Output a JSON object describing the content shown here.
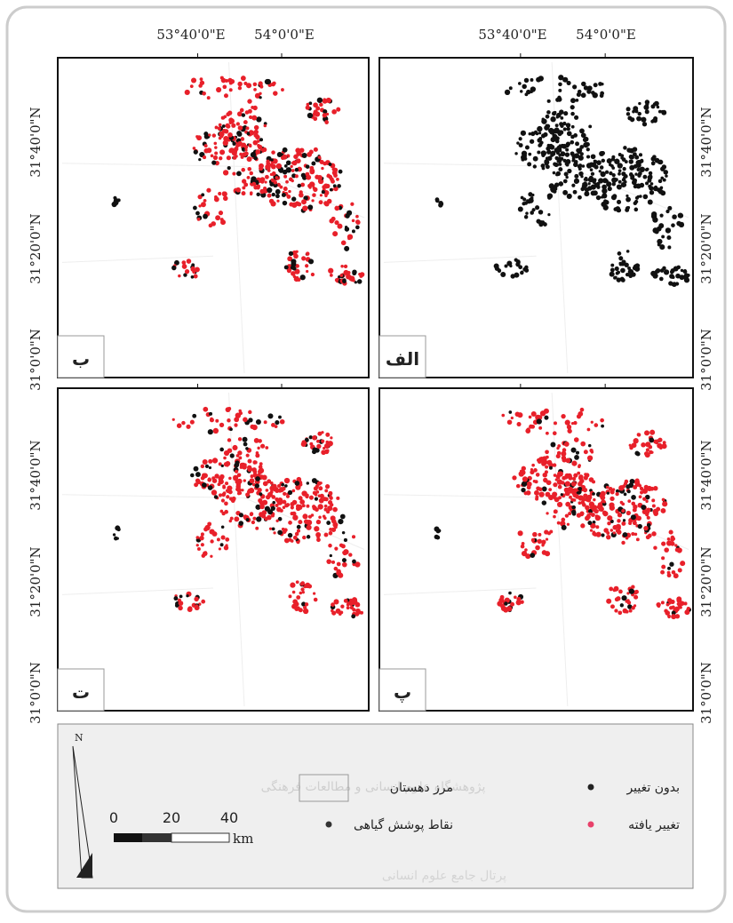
{
  "top_labels": [
    "53°40'0\"E",
    "54°0'0\"E"
  ],
  "side_labels": [
    "31°40'0\"N",
    "31°20'0\"N",
    "31°0'0\"N"
  ],
  "panels": [
    {
      "label": "ب"
    },
    {
      "label": "الف"
    },
    {
      "label": "ت"
    },
    {
      "label": "پ"
    }
  ],
  "legend": {
    "items": [
      "بدون تغییر",
      "تغییر یافته",
      "مرز دهستان",
      "نقاط پوشش گیاهی"
    ],
    "north": "N",
    "scale": [
      "0",
      "20",
      "40"
    ],
    "unit": "km"
  },
  "watermark": [
    "پژوهشگاه علوم انسانی و مطالعات فرهنگی",
    "پرتال جامع علوم انسانی"
  ]
}
